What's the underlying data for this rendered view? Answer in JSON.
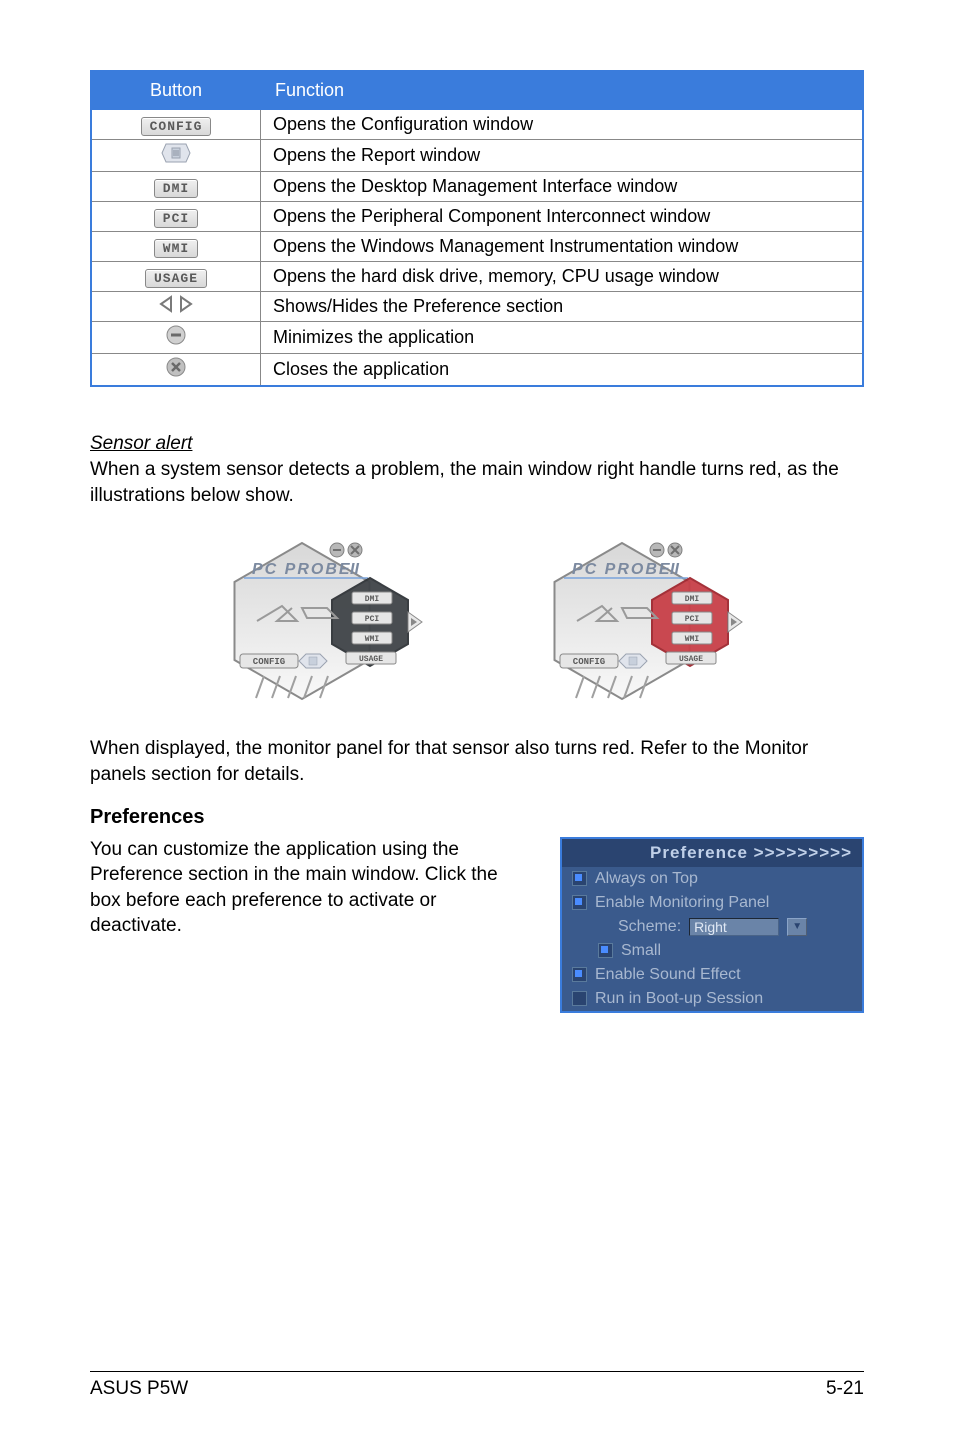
{
  "table": {
    "headers": {
      "button": "Button",
      "function": "Function"
    },
    "rows": [
      {
        "kind": "chip",
        "label": "CONFIG",
        "func": "Opens the Configuration window"
      },
      {
        "kind": "report",
        "label": "",
        "func": "Opens the Report window"
      },
      {
        "kind": "chip",
        "label": "DMI",
        "func": "Opens the Desktop Management Interface window"
      },
      {
        "kind": "chip",
        "label": "PCI",
        "func": "Opens the Peripheral Component Interconnect window"
      },
      {
        "kind": "chip",
        "label": "WMI",
        "func": "Opens the Windows Management Instrumentation window"
      },
      {
        "kind": "chip",
        "label": "USAGE",
        "func": "Opens the hard disk drive, memory, CPU usage window"
      },
      {
        "kind": "arrows",
        "label": "",
        "func": "Shows/Hides the Preference section"
      },
      {
        "kind": "minimize",
        "label": "",
        "func": "Minimizes the application"
      },
      {
        "kind": "close",
        "label": "",
        "func": "Closes the application"
      }
    ]
  },
  "sensor": {
    "heading": "Sensor alert",
    "p1": "When a system sensor detects a problem, the main window right handle turns red, as the illustrations below show.",
    "p2": "When displayed, the monitor panel for that sensor also turns red. Refer to the Monitor panels section for details."
  },
  "hexagon": {
    "title_primary": "PC PROBE",
    "title_suffix": "II",
    "buttons": {
      "dmi": "DMI",
      "pci": "PCI",
      "wmi": "WMI",
      "usage": "USAGE",
      "config": "CONFIG"
    },
    "colors": {
      "body_top": "#d8d8d8",
      "body_bottom": "#f8f8f8",
      "body_stroke": "#8a8a8a",
      "edge_stroke": "#a0a0a0",
      "title_text": "#7c8aa0",
      "chip_fill": "#e6e6e6",
      "chip_stroke": "#888888",
      "chip_text": "#5a5a5a",
      "close_fill": "#b8b8b8",
      "close_stroke": "#808080",
      "right_dark_fill": "#404448",
      "right_dark_stroke": "#303438",
      "right_red_fill": "#c84048",
      "right_red_stroke": "#a02830",
      "arrow_fill": "#e8e8e8",
      "arrow_glyph": "#888888",
      "logo_stroke": "#9a9a9a",
      "accent_line": "#7aa4dc"
    }
  },
  "prefs": {
    "heading": "Preferences",
    "text": "You can customize the application using the Preference section in the main window. Click the box before each preference to activate or deactivate.",
    "panel": {
      "header": "Preference >>>>>>>>>",
      "items": [
        {
          "label": "Always on Top",
          "checked": true,
          "sub": false
        },
        {
          "label": "Enable Monitoring Panel",
          "checked": true,
          "sub": false
        }
      ],
      "scheme_label": "Scheme:",
      "scheme_value": "Right",
      "small": {
        "label": "Small",
        "checked": true
      },
      "items2": [
        {
          "label": "Enable Sound Effect",
          "checked": true
        },
        {
          "label": "Run in Boot-up Session",
          "checked": false
        }
      ]
    }
  },
  "footer": {
    "left": "ASUS P5W",
    "right": "5-21"
  }
}
